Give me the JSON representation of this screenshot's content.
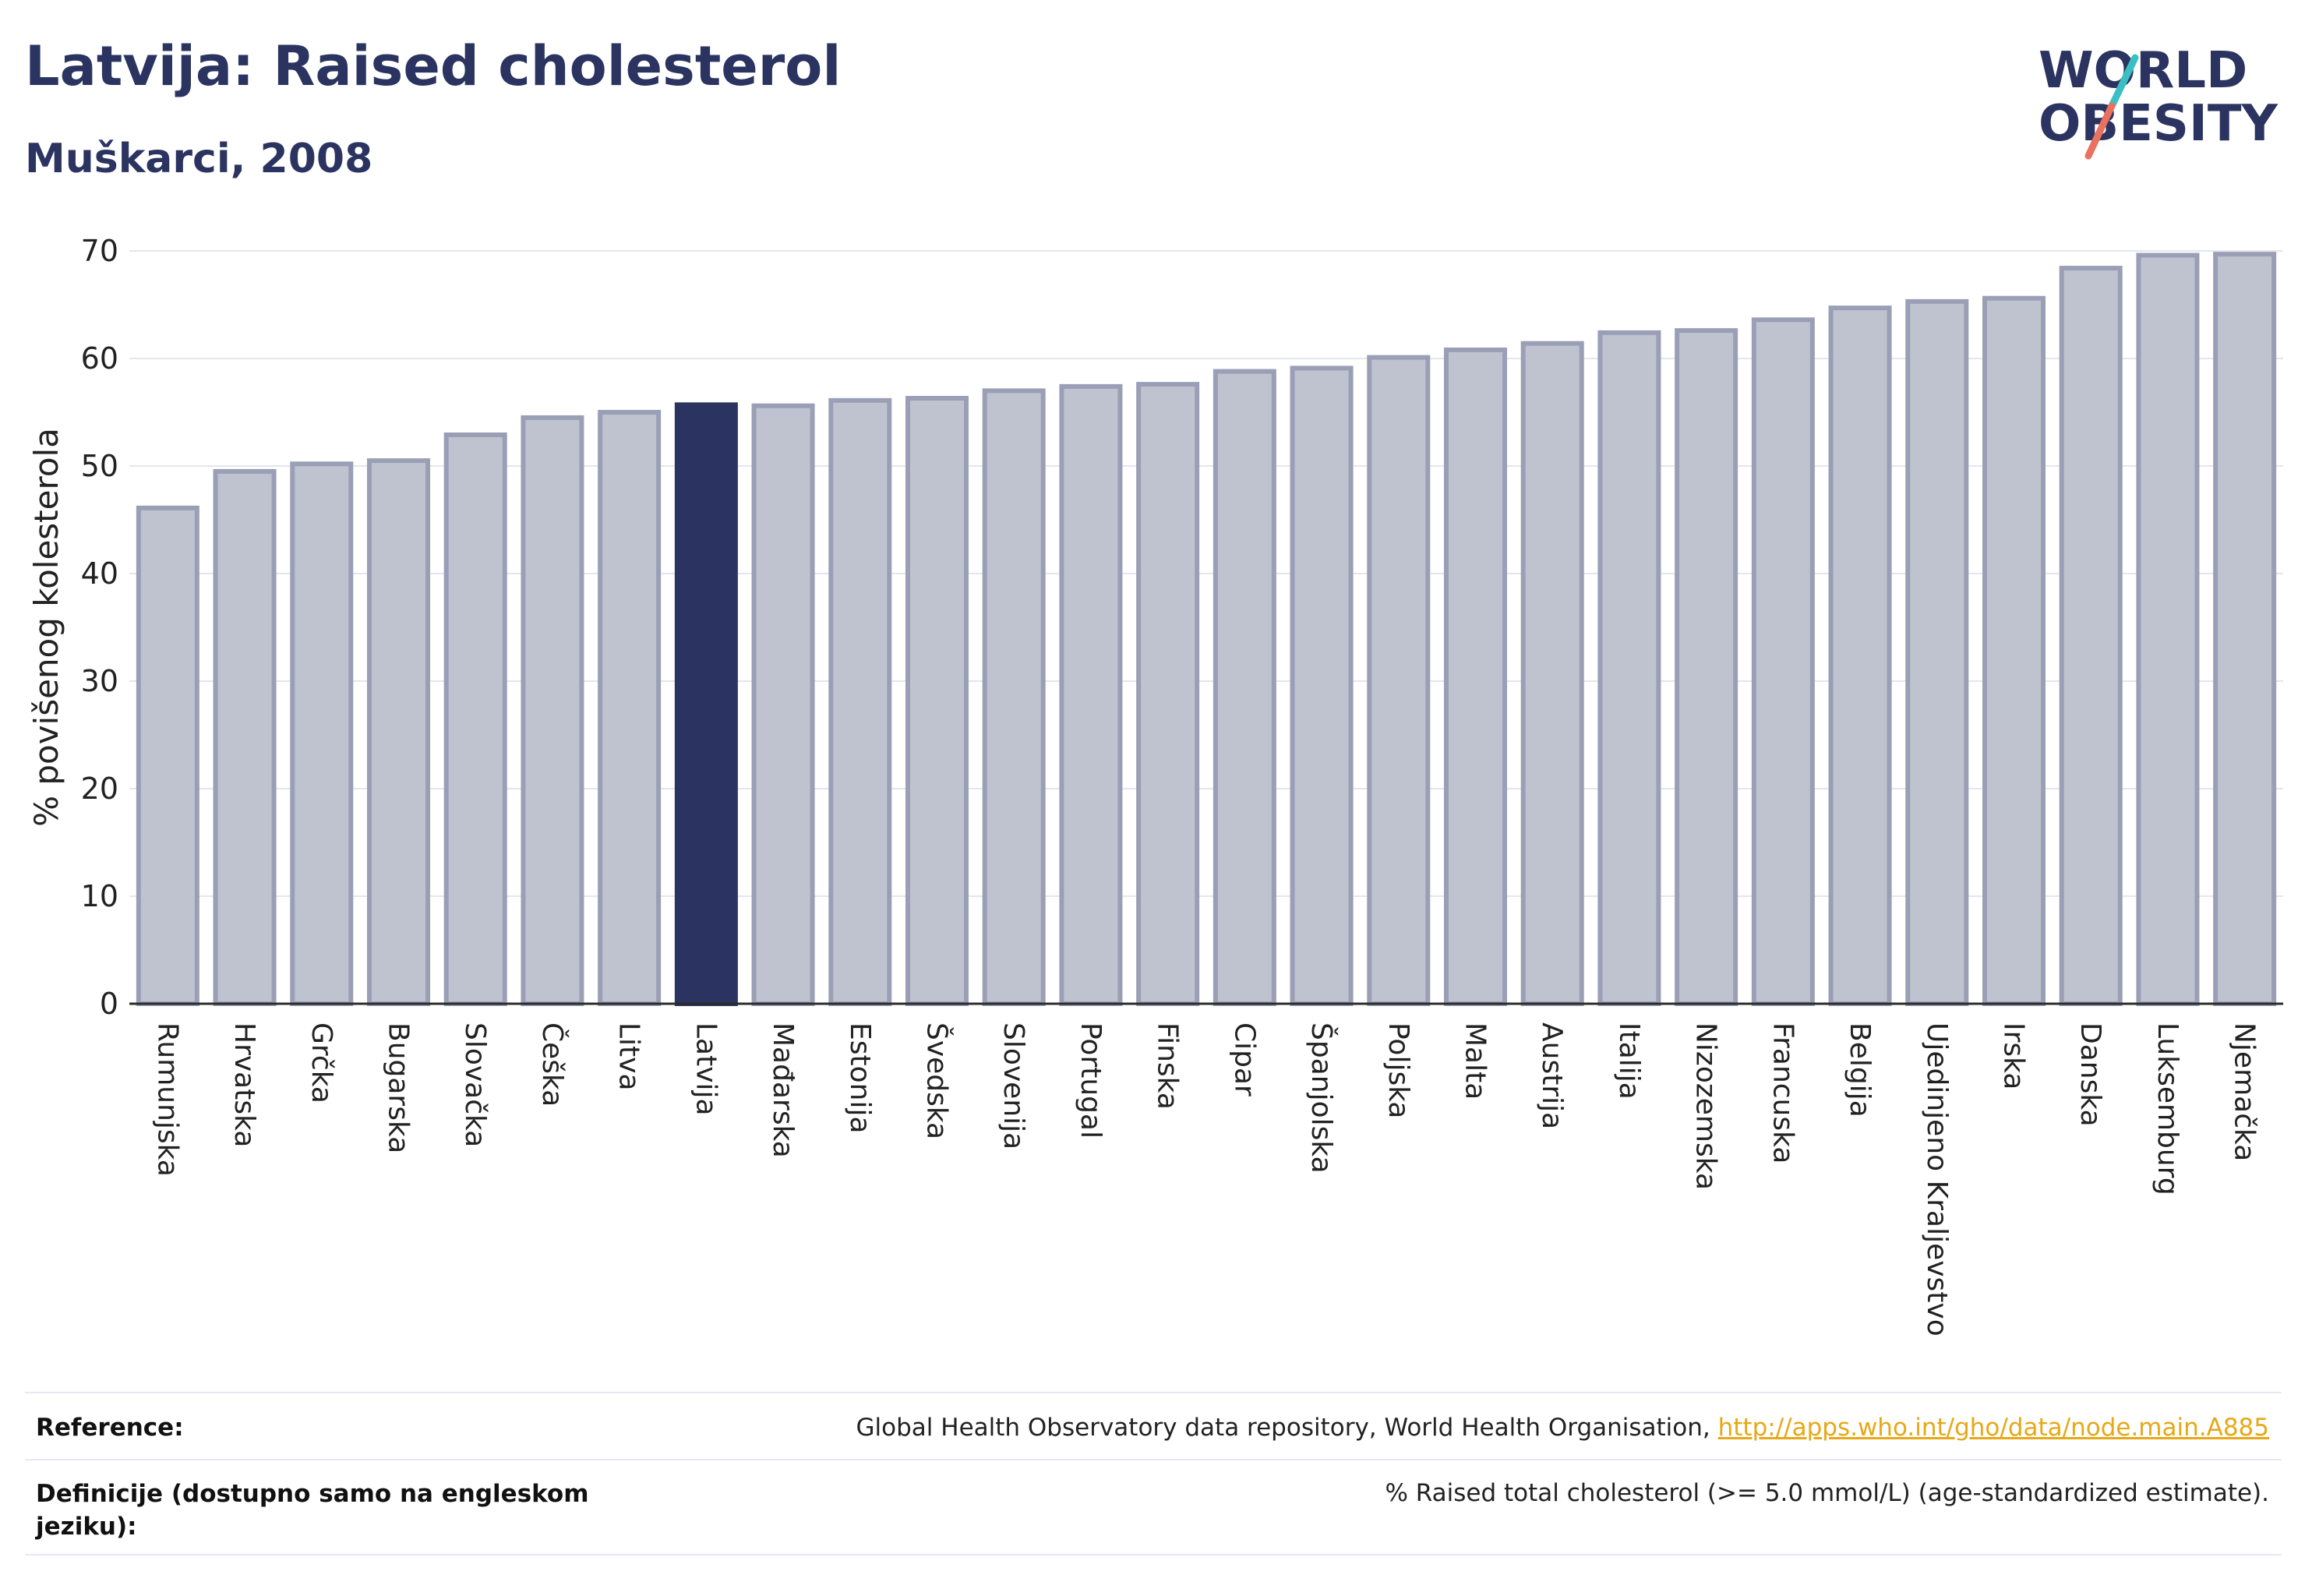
{
  "header": {
    "title": "Latvija: Raised cholesterol",
    "subtitle": "Muškarci, 2008"
  },
  "logo": {
    "line1": "WORLD",
    "line2": "OBESITY",
    "slash_colors": [
      "#3cbfc4",
      "#e8725e"
    ]
  },
  "colors": {
    "highlight_bar": "#2b3460",
    "bar_fill": "#bfc3d0",
    "bar_stroke": "#9a9fb6",
    "text_primary": "#2b3460",
    "link": "#e6a817"
  },
  "chart_data": {
    "type": "bar",
    "title": "Latvija: Raised cholesterol",
    "subtitle": "Muškarci, 2008",
    "xlabel": "",
    "ylabel": "% povišenog kolesterola",
    "ylim": [
      0,
      70
    ],
    "yticks": [
      0,
      10,
      20,
      30,
      40,
      50,
      60,
      70
    ],
    "grid": true,
    "highlight": "Latvija",
    "categories": [
      "Rumunjska",
      "Hrvatska",
      "Grčka",
      "Bugarska",
      "Slovačka",
      "Češka",
      "Litva",
      "Latvija",
      "Mađarska",
      "Estonija",
      "Švedska",
      "Slovenija",
      "Portugal",
      "Finska",
      "Cipar",
      "Španjolska",
      "Poljska",
      "Malta",
      "Austrija",
      "Italija",
      "Nizozemska",
      "Francuska",
      "Belgija",
      "Ujedinjeno Kraljevstvo",
      "Irska",
      "Danska",
      "Luksemburg",
      "Njemačka"
    ],
    "values": [
      46.1,
      49.5,
      50.2,
      50.5,
      52.9,
      54.5,
      55.0,
      55.7,
      55.6,
      56.1,
      56.3,
      57.0,
      57.4,
      57.6,
      58.8,
      59.1,
      60.1,
      60.8,
      61.4,
      62.4,
      62.6,
      63.6,
      64.7,
      65.3,
      65.6,
      68.4,
      69.6,
      69.7
    ]
  },
  "footer": {
    "reference_label": "Reference:",
    "reference_text": "Global Health Observatory data repository, World Health Organisation, ",
    "reference_link": "http://apps.who.int/gho/data/node.main.A885",
    "definition_label": "Definicije (dostupno samo na engleskom jeziku):",
    "definition_text": "% Raised total cholesterol (>= 5.0 mmol/L) (age-standardized estimate)."
  }
}
